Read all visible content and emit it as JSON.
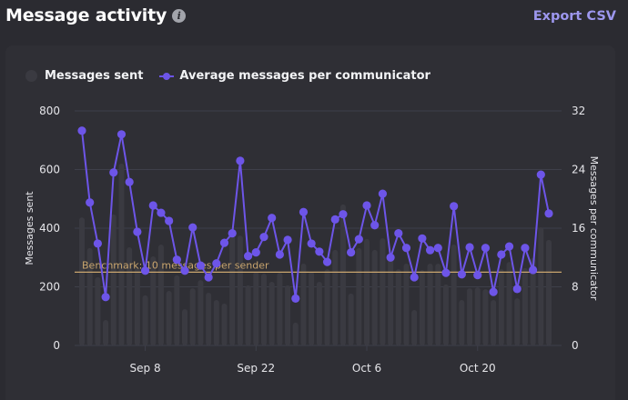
{
  "header": {
    "title": "Message activity",
    "info_icon": "info-icon",
    "export_label": "Export CSV"
  },
  "colors": {
    "bars": "#3a3a41",
    "line": "#6d55e8",
    "benchmark": "#c9a56e",
    "grid": "#3e3f4a",
    "accent_link": "#9d97ee"
  },
  "chart_data": {
    "type": "bar",
    "title": "Message activity",
    "legend": [
      "Messages sent",
      "Average messages per communicator"
    ],
    "legend_position": "top-left",
    "x_tick_labels": [
      "Sep 8",
      "Sep 22",
      "Oct 6",
      "Oct 20"
    ],
    "x_tick_indices": [
      8,
      22,
      36,
      50
    ],
    "x_start_date": "Aug 31",
    "ylabel": "Messages sent",
    "ylim": [
      0,
      800
    ],
    "yticks": [
      0,
      200,
      400,
      600,
      800
    ],
    "y2label": "Messages per communicator",
    "y2lim": [
      0,
      32
    ],
    "y2ticks": [
      0,
      8,
      16,
      24,
      32
    ],
    "grid": true,
    "benchmark": {
      "label": "Benchmark: 10 messages per sender",
      "value": 10,
      "axis": "right"
    },
    "series": [
      {
        "name": "Messages sent",
        "type": "bar",
        "axis": "left",
        "values": [
          437,
          332,
          233,
          87,
          447,
          620,
          335,
          264,
          171,
          304,
          344,
          186,
          239,
          124,
          195,
          223,
          180,
          155,
          143,
          375,
          375,
          205,
          251,
          245,
          217,
          248,
          205,
          78,
          279,
          251,
          217,
          260,
          326,
          481,
          177,
          332,
          363,
          326,
          366,
          313,
          260,
          279,
          121,
          257,
          279,
          279,
          208,
          344,
          155,
          195,
          198,
          192,
          155,
          260,
          285,
          161,
          264,
          298,
          403,
          360
        ]
      },
      {
        "name": "Average messages per communicator",
        "type": "line",
        "axis": "right",
        "values": [
          29.3,
          19.5,
          13.9,
          6.6,
          23.6,
          28.8,
          22.3,
          15.5,
          10.2,
          19.1,
          18.1,
          17.0,
          11.7,
          10.2,
          16.1,
          10.9,
          9.3,
          11.2,
          14.0,
          15.3,
          25.2,
          12.2,
          12.7,
          14.8,
          17.4,
          12.4,
          14.4,
          6.4,
          18.2,
          13.9,
          12.8,
          11.4,
          17.2,
          17.9,
          12.7,
          14.5,
          19.1,
          16.4,
          20.7,
          12.0,
          15.3,
          13.3,
          9.3,
          14.6,
          13.0,
          13.3,
          9.9,
          19.0,
          9.7,
          13.4,
          9.6,
          13.3,
          7.3,
          12.4,
          13.5,
          7.7,
          13.3,
          10.3,
          23.3,
          18.0
        ]
      }
    ]
  }
}
